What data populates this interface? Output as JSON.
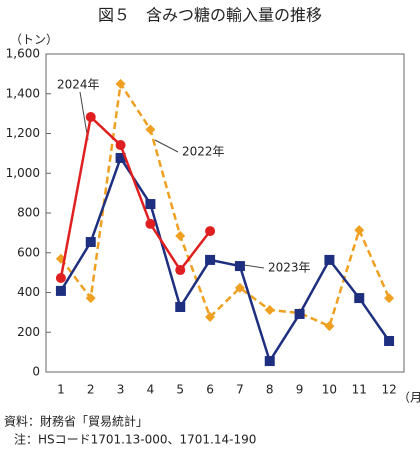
{
  "chart_data": {
    "type": "line",
    "title": "図５　含みつ糖の輸入量の推移",
    "y_unit": "（トン）",
    "x_unit": "（月）",
    "categories": [
      "1",
      "2",
      "3",
      "4",
      "5",
      "6",
      "7",
      "8",
      "9",
      "10",
      "11",
      "12"
    ],
    "series": [
      {
        "name": "2022年",
        "color": "#f0a020",
        "dash": true,
        "marker": "diamond",
        "values": [
          570,
          372,
          1450,
          1220,
          685,
          277,
          423,
          312,
          297,
          231,
          714,
          372
        ]
      },
      {
        "name": "2023年",
        "color": "#1f2f80",
        "dash": false,
        "marker": "square",
        "values": [
          408,
          654,
          1077,
          845,
          327,
          564,
          533,
          55,
          292,
          564,
          372,
          156
        ]
      },
      {
        "name": "2024年",
        "color": "#e02020",
        "dash": false,
        "marker": "circle",
        "values": [
          473,
          1283,
          1142,
          745,
          513,
          709,
          null,
          null,
          null,
          null,
          null,
          null
        ]
      }
    ],
    "ylim": [
      0,
      1600
    ],
    "yticks": [
      0,
      200,
      400,
      600,
      800,
      {
        "value": 1000,
        "label": "1,000"
      },
      {
        "value": 1200,
        "label": "1,200"
      },
      {
        "value": 1400,
        "label": "1,400"
      },
      {
        "value": 1600,
        "label": "1,600"
      }
    ],
    "source": "資料：財務省「貿易統計」",
    "note": "注：HSコード1701.13-000、1701.14-190"
  }
}
